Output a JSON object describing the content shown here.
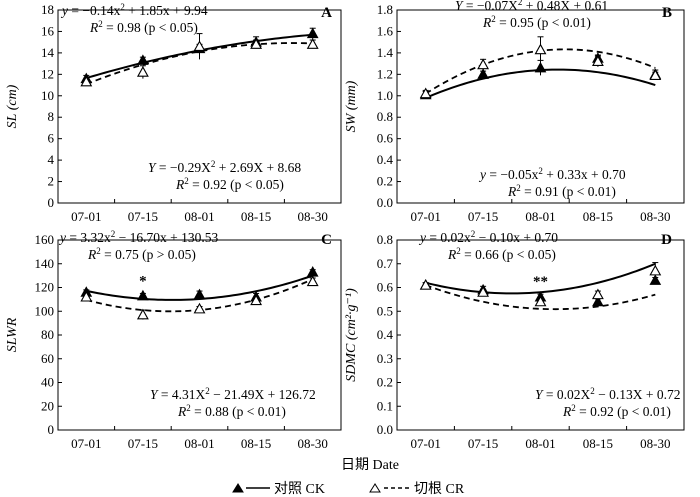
{
  "figure": {
    "x_title": "日期 Date",
    "legend": [
      {
        "label": "对照 CK",
        "marker": "filled-triangle",
        "line": "solid"
      },
      {
        "label": "切根 CR",
        "marker": "open-triangle",
        "line": "dashed"
      }
    ]
  },
  "chart_data": [
    {
      "type": "line",
      "panel": "A",
      "ylabel": "SL (cm)",
      "categories": [
        "07-01",
        "07-15",
        "08-01",
        "08-15",
        "08-30"
      ],
      "ylim": [
        0,
        18
      ],
      "yticks": [
        0,
        2,
        4,
        6,
        8,
        10,
        12,
        14,
        16,
        18
      ],
      "series": [
        {
          "name": "对照 CK",
          "values": [
            11.6,
            13.3,
            14.4,
            15.0,
            15.8
          ],
          "errors": [
            0.3,
            0.3,
            0.4,
            0.5,
            0.5
          ],
          "fit": [
            -0.14,
            1.85,
            9.94
          ]
        },
        {
          "name": "切根 CR",
          "values": [
            11.3,
            12.2,
            14.6,
            14.8,
            14.8
          ],
          "errors": [
            0.2,
            0.6,
            1.2,
            0.4,
            0.4
          ],
          "fit": [
            -0.29,
            2.69,
            8.68
          ]
        }
      ],
      "equations": [
        {
          "line1": "y = −0.14x² + 1.85x + 9.94",
          "line2": "R² = 0.98 (p < 0.05)"
        },
        {
          "line1": "Y = −0.29X² + 2.69X + 8.68",
          "line2": "R² = 0.92 (p < 0.05)"
        }
      ],
      "annotations": []
    },
    {
      "type": "line",
      "panel": "B",
      "ylabel": "SW (mm)",
      "categories": [
        "07-01",
        "07-15",
        "08-01",
        "08-15",
        "08-30"
      ],
      "ylim": [
        0,
        1.8
      ],
      "yticks": [
        0,
        0.2,
        0.4,
        0.6,
        0.8,
        1.0,
        1.2,
        1.4,
        1.6,
        1.8
      ],
      "series": [
        {
          "name": "对照 CK",
          "values": [
            1.01,
            1.2,
            1.26,
            1.35,
            1.2
          ],
          "errors": [
            0.03,
            0.03,
            0.07,
            0.03,
            0.04
          ],
          "fit": [
            -0.05,
            0.33,
            0.7
          ]
        },
        {
          "name": "切根 CR",
          "values": [
            1.02,
            1.29,
            1.43,
            1.32,
            1.19
          ],
          "errors": [
            0.03,
            0.05,
            0.12,
            0.05,
            0.03
          ],
          "fit": [
            -0.07,
            0.48,
            0.61
          ]
        }
      ],
      "equations": [
        {
          "line1": "Y = −0.07X² + 0.48X + 0.61",
          "line2": "R² = 0.95 (p < 0.01)"
        },
        {
          "line1": "y = −0.05x² + 0.33x + 0.70",
          "line2": "R² = 0.91 (p < 0.01)"
        }
      ],
      "annotations": []
    },
    {
      "type": "line",
      "panel": "C",
      "ylabel": "SLWR",
      "categories": [
        "07-01",
        "07-15",
        "08-01",
        "08-15",
        "08-30"
      ],
      "ylim": [
        0,
        160
      ],
      "yticks": [
        0,
        20,
        40,
        60,
        80,
        100,
        120,
        140,
        160
      ],
      "series": [
        {
          "name": "对照 CK",
          "values": [
            116,
            113,
            114,
            112,
            133
          ],
          "errors": [
            2,
            2,
            3,
            3,
            2
          ],
          "fit": [
            3.32,
            -16.7,
            130.53
          ]
        },
        {
          "name": "切根 CR",
          "values": [
            112,
            97,
            102,
            109,
            125
          ],
          "errors": [
            2,
            4,
            2,
            3,
            3
          ],
          "fit": [
            4.31,
            -21.49,
            126.72
          ]
        }
      ],
      "equations": [
        {
          "line1": "y = 3.32x² − 16.70x + 130.53",
          "line2": "R² = 0.75 (p > 0.05)"
        },
        {
          "line1": "Y = 4.31X² − 21.49X + 126.72",
          "line2": "R² = 0.88 (p < 0.01)"
        }
      ],
      "annotations": [
        {
          "category": "07-15",
          "text": "*"
        }
      ]
    },
    {
      "type": "line",
      "panel": "D",
      "ylabel": "SDMC (cm²·g⁻¹)",
      "categories": [
        "07-01",
        "07-15",
        "08-01",
        "08-15",
        "08-30"
      ],
      "ylim": [
        0,
        0.8
      ],
      "yticks": [
        0,
        0.1,
        0.2,
        0.3,
        0.4,
        0.5,
        0.6,
        0.7,
        0.8
      ],
      "series": [
        {
          "name": "对照 CK",
          "values": [
            0.61,
            0.59,
            0.56,
            0.54,
            0.63
          ],
          "errors": [
            0.01,
            0.015,
            0.012,
            0.012,
            0.012
          ],
          "fit": [
            0.02,
            -0.1,
            0.7
          ]
        },
        {
          "name": "切根 CR",
          "values": [
            0.61,
            0.58,
            0.54,
            0.57,
            0.67
          ],
          "errors": [
            0.01,
            0.012,
            0.012,
            0.015,
            0.035
          ],
          "fit": [
            0.02,
            -0.13,
            0.72
          ]
        }
      ],
      "equations": [
        {
          "line1": "y = 0.02x² − 0.10x + 0.70",
          "line2": "R² = 0.66 (p < 0.05)"
        },
        {
          "line1": "Y = 0.02X² − 0.13X + 0.72",
          "line2": "R² = 0.92 (p < 0.01)"
        }
      ],
      "annotations": [
        {
          "category": "08-01",
          "text": "**"
        }
      ]
    }
  ]
}
